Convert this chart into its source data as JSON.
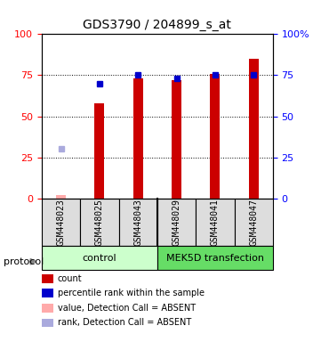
{
  "title": "GDS3790 / 204899_s_at",
  "samples": [
    "GSM448023",
    "GSM448025",
    "GSM448043",
    "GSM448029",
    "GSM448041",
    "GSM448047"
  ],
  "groups": [
    "control",
    "control",
    "control",
    "MEK5D transfection",
    "MEK5D transfection",
    "MEK5D transfection"
  ],
  "red_bars": [
    2,
    58,
    73,
    72,
    76,
    85
  ],
  "blue_dots": [
    null,
    70,
    75,
    73,
    75,
    75
  ],
  "absent_red": [
    2,
    null,
    null,
    null,
    null,
    null
  ],
  "absent_blue": [
    30,
    null,
    null,
    null,
    null,
    null
  ],
  "ylim": [
    0,
    100
  ],
  "grid_lines": [
    25,
    50,
    75
  ],
  "bar_color": "#cc0000",
  "blue_color": "#0000cc",
  "absent_red_color": "#ffaaaa",
  "absent_blue_color": "#aaaadd",
  "group_colors": {
    "control": "#ccffcc",
    "MEK5D transfection": "#66dd66"
  },
  "protocol_label": "protocol",
  "legend_items": [
    {
      "label": "count",
      "color": "#cc0000"
    },
    {
      "label": "percentile rank within the sample",
      "color": "#0000cc"
    },
    {
      "label": "value, Detection Call = ABSENT",
      "color": "#ffaaaa"
    },
    {
      "label": "rank, Detection Call = ABSENT",
      "color": "#aaaadd"
    }
  ]
}
